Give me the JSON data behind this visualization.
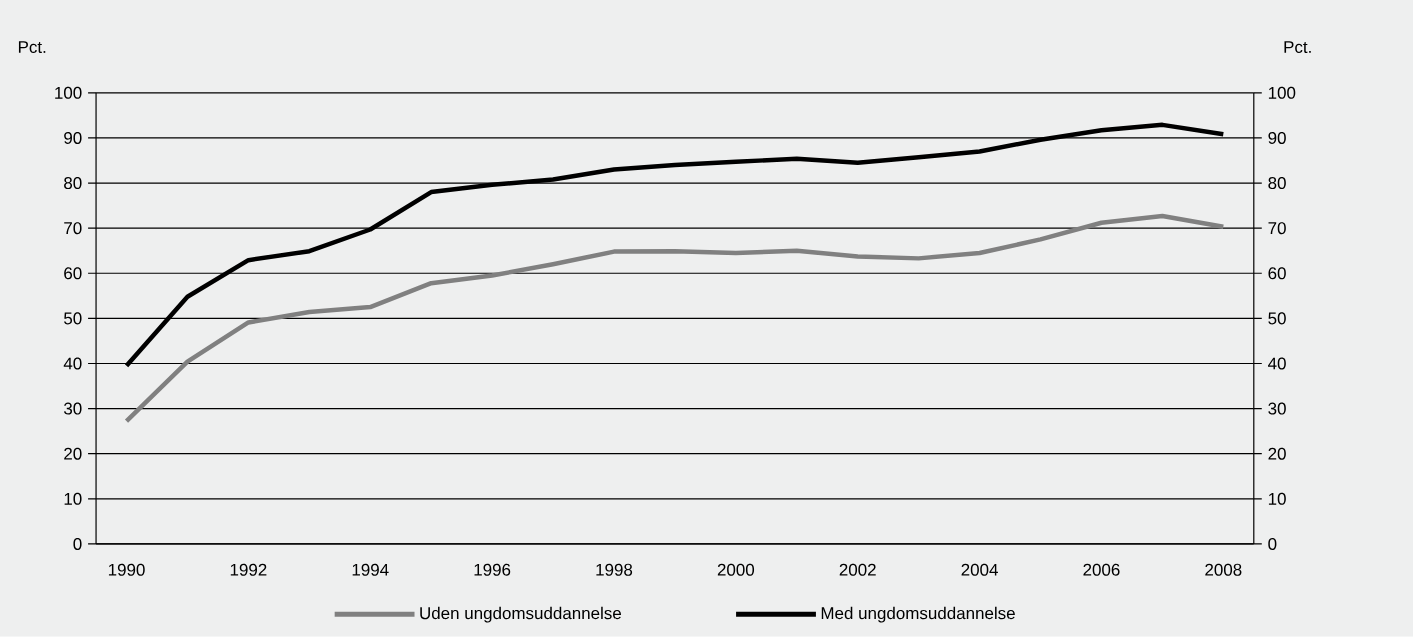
{
  "chart_data": {
    "type": "line",
    "ylabel": "Pct.",
    "y2label": "Pct.",
    "categories": [
      "1990",
      null,
      "1992",
      null,
      "1994",
      null,
      "1996",
      null,
      "1998",
      null,
      "2000",
      null,
      "2002",
      null,
      "2004",
      null,
      "2006",
      null,
      "2008"
    ],
    "series": [
      {
        "name": "Uden ungdomsuddannelse",
        "color": "#808080",
        "values": [
          27.2,
          40.4,
          49.1,
          51.4,
          52.5,
          57.8,
          59.5,
          62.0,
          64.8,
          64.9,
          64.5,
          65.0,
          63.7,
          63.3,
          64.5,
          67.5,
          71.2,
          72.7,
          70.3
        ]
      },
      {
        "name": "Med ungdomsuddannelse",
        "color": "#000000",
        "values": [
          39.5,
          54.8,
          62.9,
          64.9,
          69.7,
          78.0,
          79.6,
          80.8,
          83.0,
          84.0,
          84.7,
          85.4,
          84.5,
          85.7,
          87.0,
          89.6,
          91.7,
          92.9,
          90.8
        ]
      }
    ],
    "ylim": [
      0,
      100
    ],
    "yticks": [
      0,
      10,
      20,
      30,
      40,
      50,
      60,
      70,
      80,
      90,
      100
    ],
    "y2lim": [
      0,
      100
    ],
    "y2ticks": [
      0,
      10,
      20,
      30,
      40,
      50,
      60,
      70,
      80,
      90,
      100
    ],
    "grid": "y",
    "legend": "bottom",
    "line_style": "solid"
  }
}
